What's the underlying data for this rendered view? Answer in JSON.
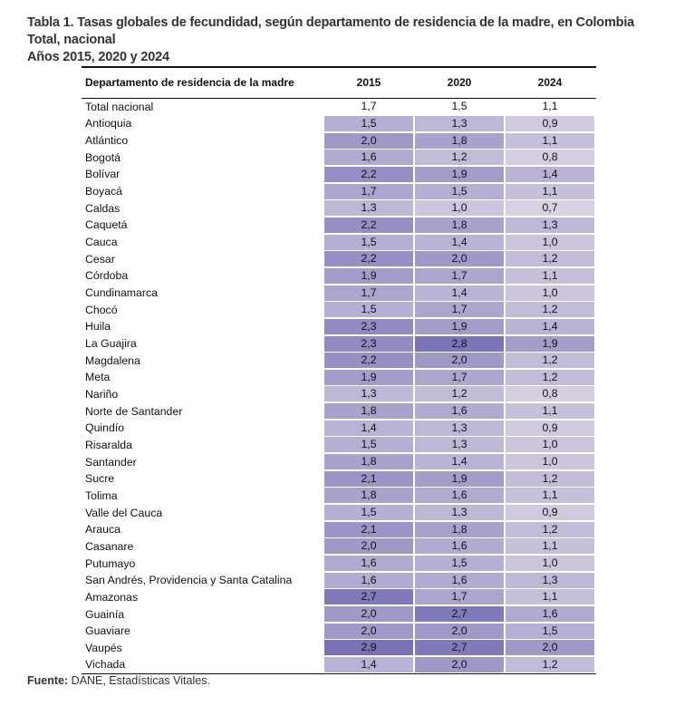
{
  "title": {
    "line1": "Tabla 1. Tasas globales de fecundidad, según departamento de residencia de la madre, en Colombia",
    "line2": "Total, nacional",
    "line3": "Años 2015, 2020 y 2024"
  },
  "table": {
    "headers": [
      "Departamento de residencia de la madre",
      "2015",
      "2020",
      "2024"
    ],
    "total": {
      "label": "Total nacional",
      "values": [
        "1,7",
        "1,5",
        "1,1"
      ]
    },
    "rows": [
      {
        "label": "Antioquia",
        "values": [
          "1,5",
          "1,3",
          "0,9"
        ]
      },
      {
        "label": "Atlántico",
        "values": [
          "2,0",
          "1,8",
          "1,1"
        ]
      },
      {
        "label": "Bogotá",
        "values": [
          "1,6",
          "1,2",
          "0,8"
        ]
      },
      {
        "label": "Bolívar",
        "values": [
          "2,2",
          "1,9",
          "1,4"
        ]
      },
      {
        "label": "Boyacá",
        "values": [
          "1,7",
          "1,5",
          "1,1"
        ]
      },
      {
        "label": "Caldas",
        "values": [
          "1,3",
          "1,0",
          "0,7"
        ]
      },
      {
        "label": "Caquetá",
        "values": [
          "2,2",
          "1,8",
          "1,3"
        ]
      },
      {
        "label": "Cauca",
        "values": [
          "1,5",
          "1,4",
          "1,0"
        ]
      },
      {
        "label": "Cesar",
        "values": [
          "2,2",
          "2,0",
          "1,2"
        ]
      },
      {
        "label": "Córdoba",
        "values": [
          "1,9",
          "1,7",
          "1,1"
        ]
      },
      {
        "label": "Cundinamarca",
        "values": [
          "1,7",
          "1,4",
          "1,0"
        ]
      },
      {
        "label": "Chocó",
        "values": [
          "1,5",
          "1,7",
          "1,2"
        ]
      },
      {
        "label": "Huila",
        "values": [
          "2,3",
          "1,9",
          "1,4"
        ]
      },
      {
        "label": "La Guajira",
        "values": [
          "2,3",
          "2,8",
          "1,9"
        ]
      },
      {
        "label": "Magdalena",
        "values": [
          "2,2",
          "2,0",
          "1,2"
        ]
      },
      {
        "label": "Meta",
        "values": [
          "1,9",
          "1,7",
          "1,2"
        ]
      },
      {
        "label": "Nariño",
        "values": [
          "1,3",
          "1,2",
          "0,8"
        ]
      },
      {
        "label": "Norte de Santander",
        "values": [
          "1,8",
          "1,6",
          "1,1"
        ]
      },
      {
        "label": "Quindío",
        "values": [
          "1,4",
          "1,3",
          "0,9"
        ]
      },
      {
        "label": "Risaralda",
        "values": [
          "1,5",
          "1,3",
          "1,0"
        ]
      },
      {
        "label": "Santander",
        "values": [
          "1,8",
          "1,4",
          "1,0"
        ]
      },
      {
        "label": "Sucre",
        "values": [
          "2,1",
          "1,9",
          "1,2"
        ]
      },
      {
        "label": "Tolima",
        "values": [
          "1,8",
          "1,6",
          "1,1"
        ]
      },
      {
        "label": "Valle del Cauca",
        "values": [
          "1,5",
          "1,3",
          "0,9"
        ]
      },
      {
        "label": "Arauca",
        "values": [
          "2,1",
          "1,8",
          "1,2"
        ]
      },
      {
        "label": "Casanare",
        "values": [
          "2,0",
          "1,6",
          "1,1"
        ]
      },
      {
        "label": "Putumayo",
        "values": [
          "1,6",
          "1,5",
          "1,0"
        ]
      },
      {
        "label": "San Andrés, Providencia y Santa Catalina",
        "values": [
          "1,6",
          "1,6",
          "1,3"
        ]
      },
      {
        "label": "Amazonas",
        "values": [
          "2,7",
          "1,7",
          "1,1"
        ]
      },
      {
        "label": "Guainía",
        "values": [
          "2,0",
          "2,7",
          "1,6"
        ]
      },
      {
        "label": "Guaviare",
        "values": [
          "2,0",
          "2,0",
          "1,5"
        ]
      },
      {
        "label": "Vaupés",
        "values": [
          "2,9",
          "2,7",
          "2,0"
        ]
      },
      {
        "label": "Vichada",
        "values": [
          "1,4",
          "2,0",
          "1,2"
        ]
      }
    ],
    "heatmap_colors": {
      "low": "#d9d2e3",
      "high": "#7771b6"
    },
    "heatmap_range": [
      0.7,
      2.9
    ]
  },
  "source": {
    "label": "Fuente:",
    "text": " DANE, Estadísticas Vitales."
  }
}
